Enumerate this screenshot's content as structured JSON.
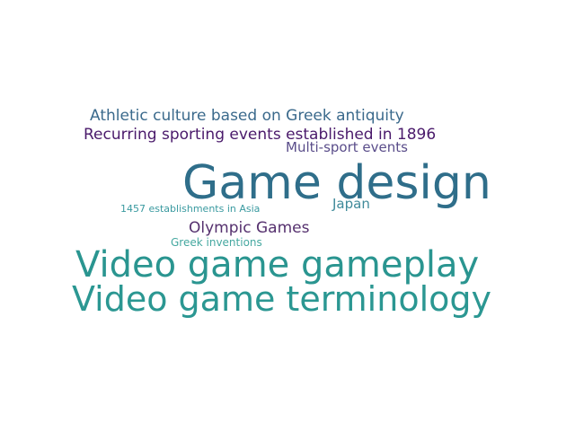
{
  "word_cloud": {
    "words": [
      {
        "text": "Athletic culture based on Greek antiquity",
        "color": "#3b6a8c"
      },
      {
        "text": "Recurring sporting events established in 1896",
        "color": "#4a1a6b"
      },
      {
        "text": "Multi-sport events",
        "color": "#5a4d8a"
      },
      {
        "text": "Game design",
        "color": "#2f6e8a"
      },
      {
        "text": "1457 establishments in Asia",
        "color": "#3a9aa0"
      },
      {
        "text": "Japan",
        "color": "#3f8a9a"
      },
      {
        "text": "Olympic Games",
        "color": "#55306e"
      },
      {
        "text": "Greek inventions",
        "color": "#45a8a0"
      },
      {
        "text": "Video game gameplay",
        "color": "#2a9590"
      },
      {
        "text": "Video game terminology",
        "color": "#2b9792"
      }
    ]
  }
}
